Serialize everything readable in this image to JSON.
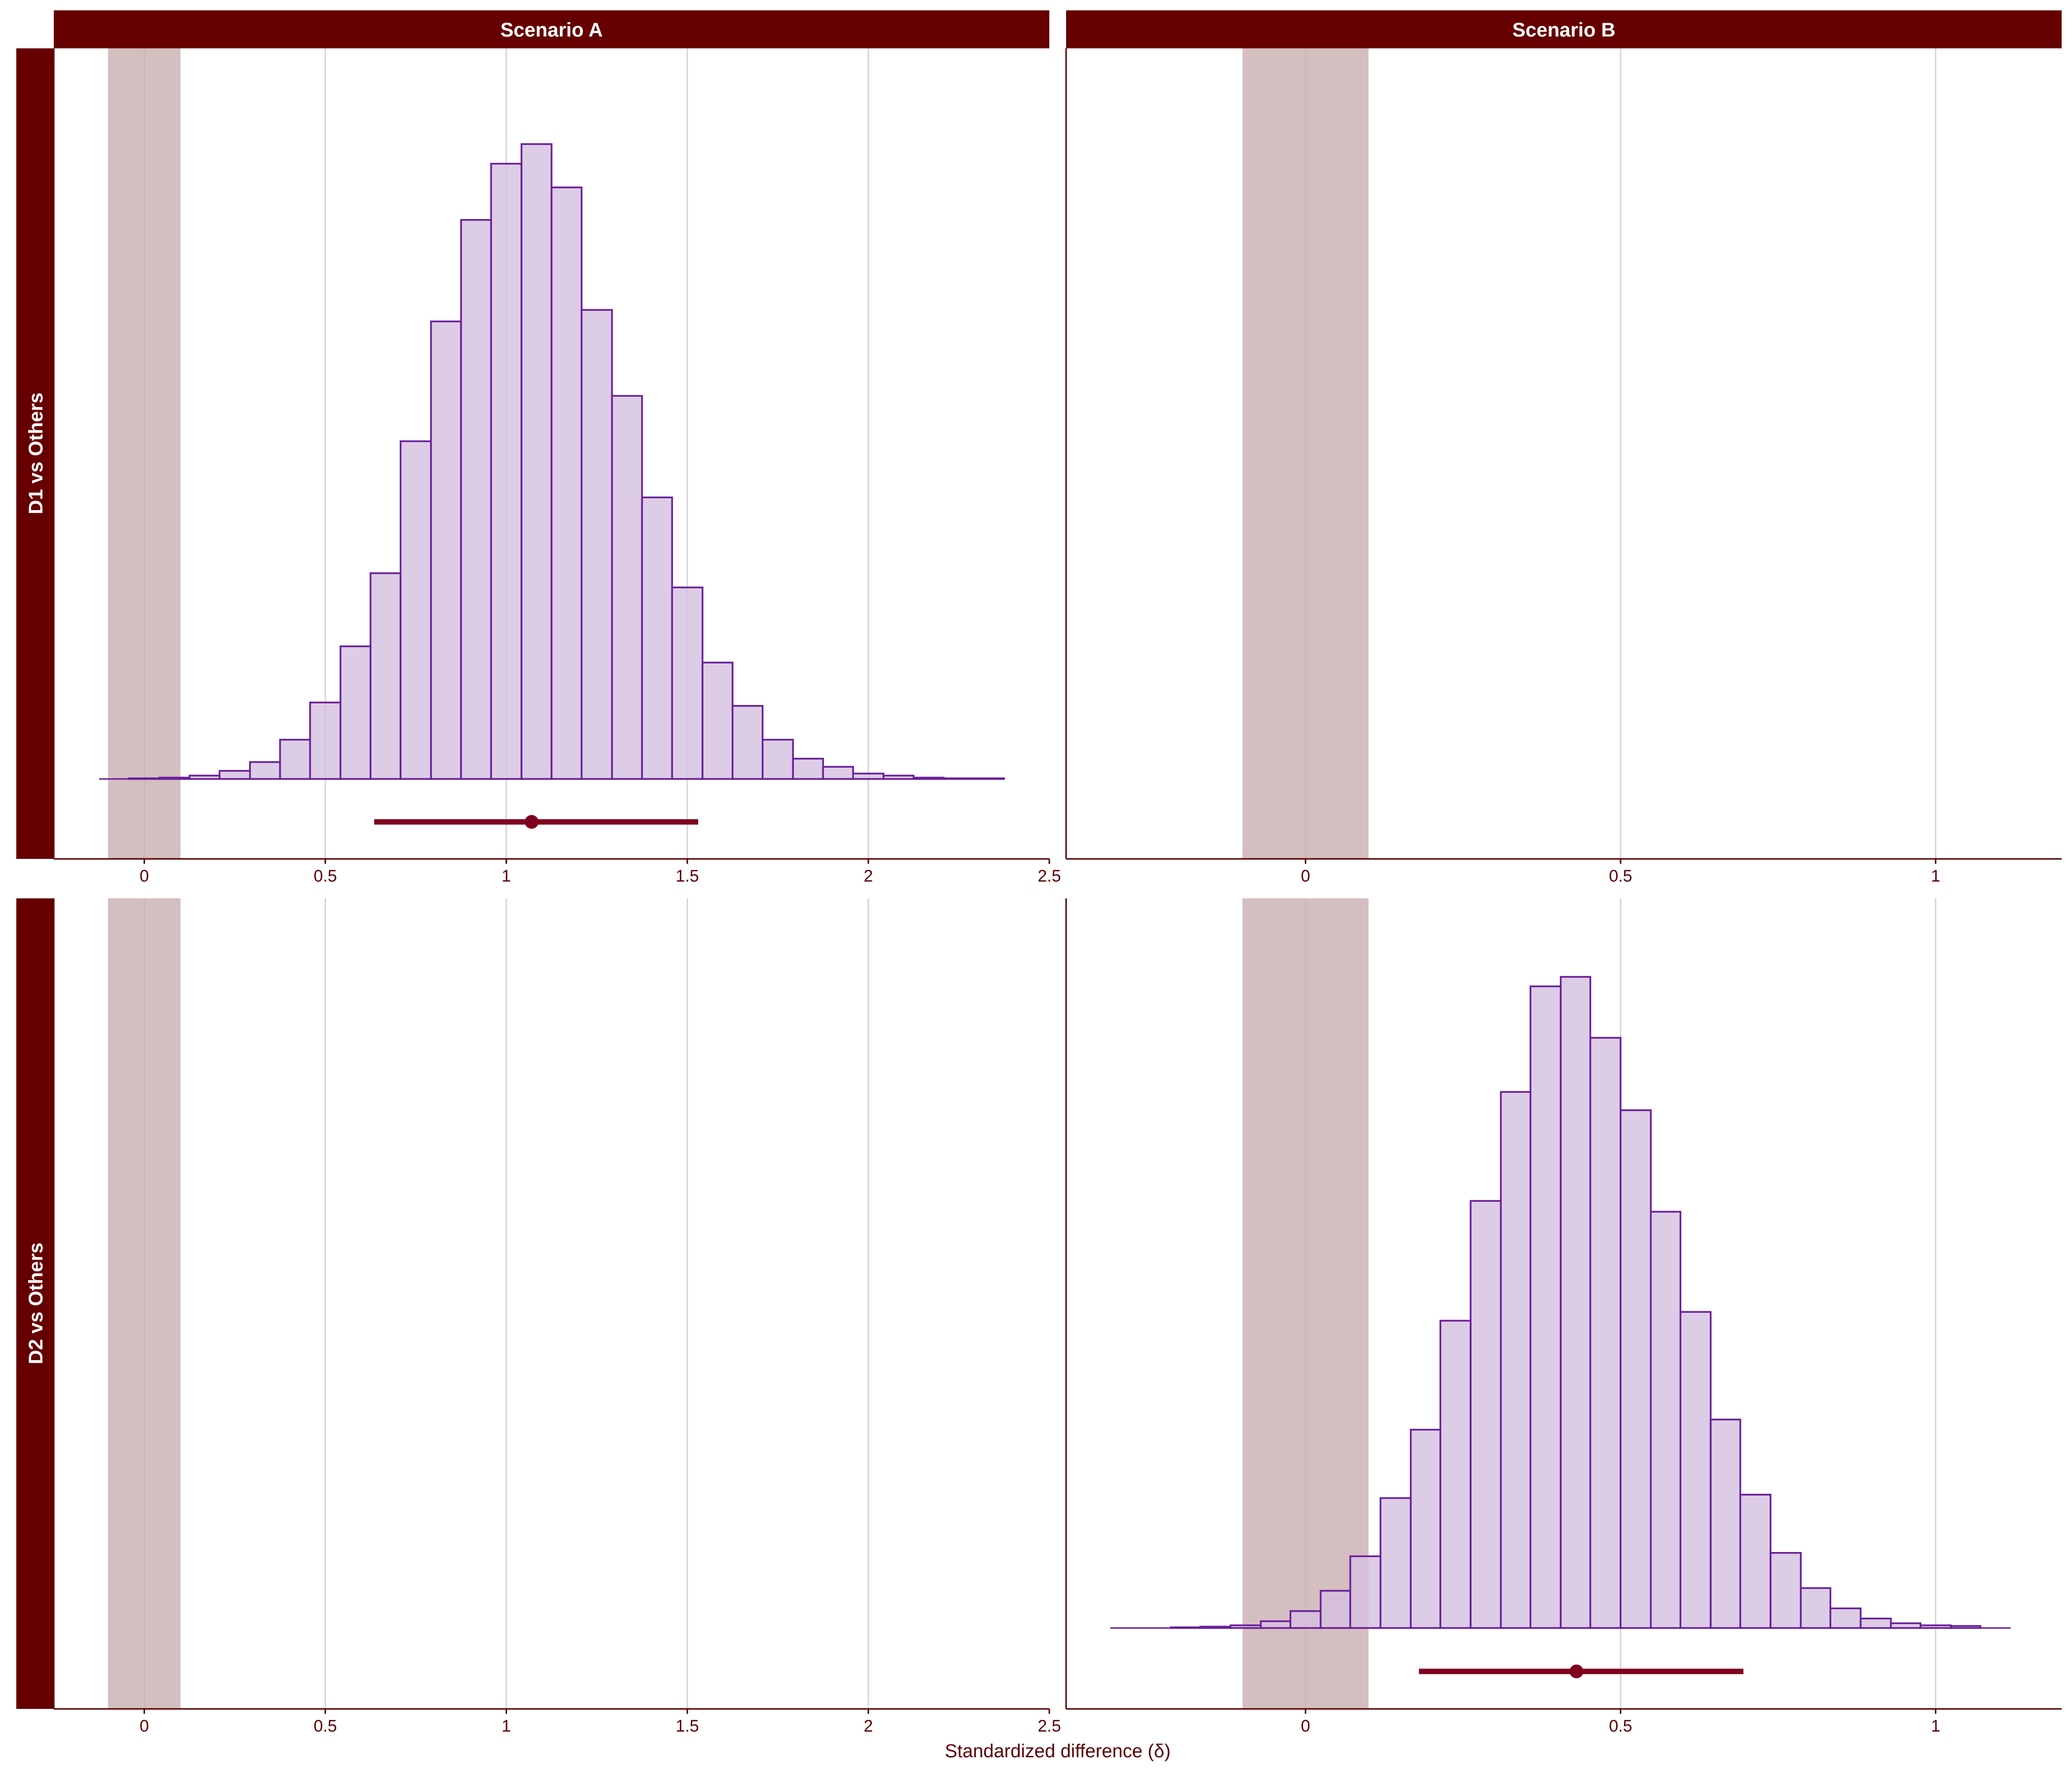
{
  "figure": {
    "xlabel": "Standardized difference (δ)",
    "col_strips": [
      "Scenario A",
      "Scenario B"
    ],
    "row_strips": [
      "D1 vs Others",
      "D2 vs Others"
    ]
  },
  "colors": {
    "strip_bg": "#660000",
    "bar_fill": "#d4bfdf",
    "bar_stroke": "#6a1f9a",
    "rope_band": "#c9aeb0",
    "interval": "#800020",
    "grid": "#d6d6d6",
    "axis": "#5a0000"
  },
  "chart_data": [
    {
      "type": "bar",
      "panel": "Scenario A / D1 vs Others",
      "xlim": [
        -0.25,
        2.5
      ],
      "xticks": [
        0,
        0.5,
        1,
        1.5,
        2,
        2.5
      ],
      "xtick_labels": [
        "0",
        "0.5",
        "1",
        "1.5",
        "2",
        "2.5"
      ],
      "rope": [
        -0.1,
        0.1
      ],
      "bin_edges": [
        -0.125,
        -0.042,
        0.042,
        0.125,
        0.208,
        0.292,
        0.375,
        0.458,
        0.542,
        0.625,
        0.708,
        0.792,
        0.875,
        0.958,
        1.042,
        1.125,
        1.208,
        1.292,
        1.375,
        1.458,
        1.542,
        1.625,
        1.708,
        1.792,
        1.875,
        1.958,
        2.042,
        2.125,
        2.208,
        2.292,
        2.375
      ],
      "counts": [
        0.0,
        0.001,
        0.002,
        0.005,
        0.012,
        0.025,
        0.058,
        0.113,
        0.196,
        0.304,
        0.499,
        0.676,
        0.826,
        0.909,
        0.938,
        0.874,
        0.693,
        0.566,
        0.416,
        0.283,
        0.172,
        0.108,
        0.058,
        0.03,
        0.018,
        0.008,
        0.005,
        0.002,
        0.001,
        0.001
      ],
      "point": 1.07,
      "interval": [
        0.635,
        1.53
      ]
    },
    {
      "type": "bar",
      "panel": "Scenario B / D1 vs Others",
      "xlim": [
        -0.38,
        1.2
      ],
      "xticks": [
        0,
        0.5,
        1
      ],
      "xtick_labels": [
        "0",
        "0.5",
        "1"
      ],
      "rope": [
        -0.1,
        0.1
      ],
      "bin_edges": [],
      "counts": [],
      "point": null,
      "interval": null
    },
    {
      "type": "bar",
      "panel": "Scenario A / D2 vs Others",
      "xlim": [
        -0.25,
        2.5
      ],
      "xticks": [
        0,
        0.5,
        1,
        1.5,
        2,
        2.5
      ],
      "xtick_labels": [
        "0",
        "0.5",
        "1",
        "1.5",
        "2",
        "2.5"
      ],
      "rope": [
        -0.1,
        0.1
      ],
      "bin_edges": [],
      "counts": [],
      "point": null,
      "interval": null
    },
    {
      "type": "bar",
      "panel": "Scenario B / D2 vs Others",
      "xlim": [
        -0.38,
        1.2
      ],
      "xticks": [
        0,
        0.5,
        1
      ],
      "xtick_labels": [
        "0",
        "0.5",
        "1"
      ],
      "rope": [
        -0.1,
        0.1
      ],
      "bin_edges": [
        -0.31,
        -0.214,
        -0.167,
        -0.119,
        -0.071,
        -0.024,
        0.024,
        0.071,
        0.119,
        0.167,
        0.214,
        0.262,
        0.31,
        0.357,
        0.405,
        0.452,
        0.5,
        0.548,
        0.595,
        0.643,
        0.69,
        0.738,
        0.786,
        0.833,
        0.881,
        0.929,
        0.976,
        1.024,
        1.071,
        1.119
      ],
      "counts": [
        0.0,
        0.001,
        0.002,
        0.004,
        0.01,
        0.025,
        0.055,
        0.106,
        0.192,
        0.293,
        0.454,
        0.631,
        0.792,
        0.948,
        0.962,
        0.872,
        0.765,
        0.615,
        0.467,
        0.308,
        0.197,
        0.111,
        0.059,
        0.029,
        0.014,
        0.007,
        0.004,
        0.003,
        0.0
      ],
      "point": 0.43,
      "interval": [
        0.18,
        0.695
      ]
    }
  ]
}
